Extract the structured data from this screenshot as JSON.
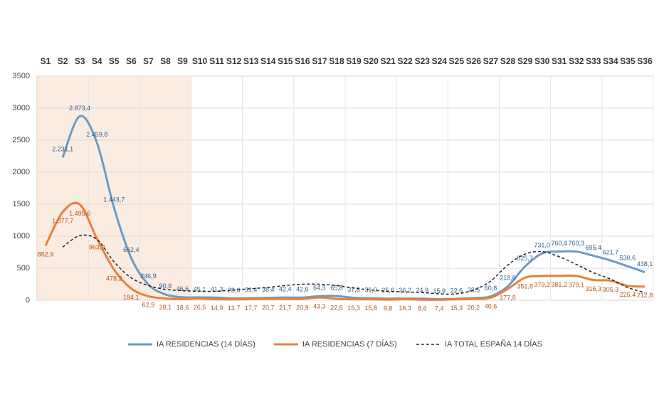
{
  "chart_data": {
    "type": "line",
    "categories": [
      "S1",
      "S2",
      "S3",
      "S4",
      "S5",
      "S6",
      "S7",
      "S8",
      "S9",
      "S10",
      "S11",
      "S12",
      "S13",
      "S14",
      "S15",
      "S16",
      "S17",
      "S18",
      "S19",
      "S20",
      "S21",
      "S22",
      "S23",
      "S24",
      "S25",
      "S26",
      "S27",
      "S28",
      "S29",
      "S30",
      "S31",
      "S32",
      "S33",
      "S34",
      "S35",
      "S36"
    ],
    "highlight_range": [
      "S1",
      "S9"
    ],
    "highlight_color": "#fbece2",
    "ylim": [
      0,
      3500
    ],
    "yticks": [
      0,
      500,
      1000,
      1500,
      2000,
      2500,
      3000,
      3500
    ],
    "grid": true,
    "series": [
      {
        "name": "IA RESIDENCIAS (14 DÍAS)",
        "color": "#6b9bc8",
        "dash": false,
        "values": [
          null,
          2231.1,
          2873.4,
          2459.8,
          1443.7,
          662.4,
          246.9,
          90.9,
          46.6,
          45.1,
          41.3,
          28.6,
          31.4,
          38.4,
          42.4,
          42.6,
          64.3,
          65.8,
          37.8,
          31.0,
          25.6,
          26.2,
          24.9,
          15.9,
          22.6,
          33.5,
          60.8,
          218.6,
          525.7,
          731.0,
          760.4,
          760.3,
          695.4,
          621.7,
          530.6,
          438.1
        ],
        "value_labels": [
          null,
          "2.231,1",
          "2.873,4",
          "2.459,8",
          "1.443,7",
          "662,4",
          "246,9",
          "90,9",
          "46,6",
          "45,1",
          "41,3",
          "28,6",
          "31,4",
          "38,4",
          "42,4",
          "42,6",
          "64,3",
          "65,8",
          "37,8",
          "31,0",
          "25,6",
          "26,2",
          "24,9",
          "15,9",
          "22,6",
          "33,5",
          "60,8",
          "218,6",
          "525,7",
          "731,0",
          "760,4",
          "760,3",
          "695,4",
          "621,7",
          "530,6",
          "438,1"
        ]
      },
      {
        "name": "IA RESIDENCIAS (7 DÍAS)",
        "color": "#e8803a",
        "dash": false,
        "values": [
          852.9,
          1377.7,
          1495.6,
          963.3,
          478.2,
          184.1,
          62.9,
          28.1,
          18.6,
          26.5,
          14.9,
          13.7,
          17.7,
          20.7,
          21.7,
          20.9,
          43.3,
          22.6,
          15.3,
          15.8,
          9.8,
          16.3,
          8.6,
          7.4,
          15.3,
          20.2,
          40.6,
          177.8,
          351.8,
          379.2,
          381.2,
          379.1,
          316.3,
          305.3,
          225.4,
          212.8
        ],
        "value_labels": [
          "852,9",
          "1.377,7",
          "1.495,6",
          "963,3",
          "478,2",
          "184,1",
          "62,9",
          "28,1",
          "18,6",
          "26,5",
          "14,9",
          "13,7",
          "17,7",
          "20,7",
          "21,7",
          "20,9",
          "43,3",
          "22,6",
          "15,3",
          "15,8",
          "9,8",
          "16,3",
          "8,6",
          "7,4",
          "15,3",
          "20,2",
          "40,6",
          "177,8",
          "351,8",
          "379,2",
          "381,2",
          "379,1",
          "316,3",
          "305,3",
          "225,4",
          "212,8"
        ]
      },
      {
        "name": "IA TOTAL ESPAÑA 14 DÍAS",
        "color": "#222222",
        "dash": true,
        "values": [
          null,
          830,
          1010,
          950,
          600,
          350,
          230,
          170,
          150,
          140,
          140,
          160,
          180,
          200,
          230,
          250,
          250,
          230,
          190,
          160,
          140,
          130,
          120,
          100,
          100,
          160,
          300,
          550,
          720,
          760,
          680,
          560,
          430,
          330,
          200,
          120
        ]
      }
    ]
  }
}
